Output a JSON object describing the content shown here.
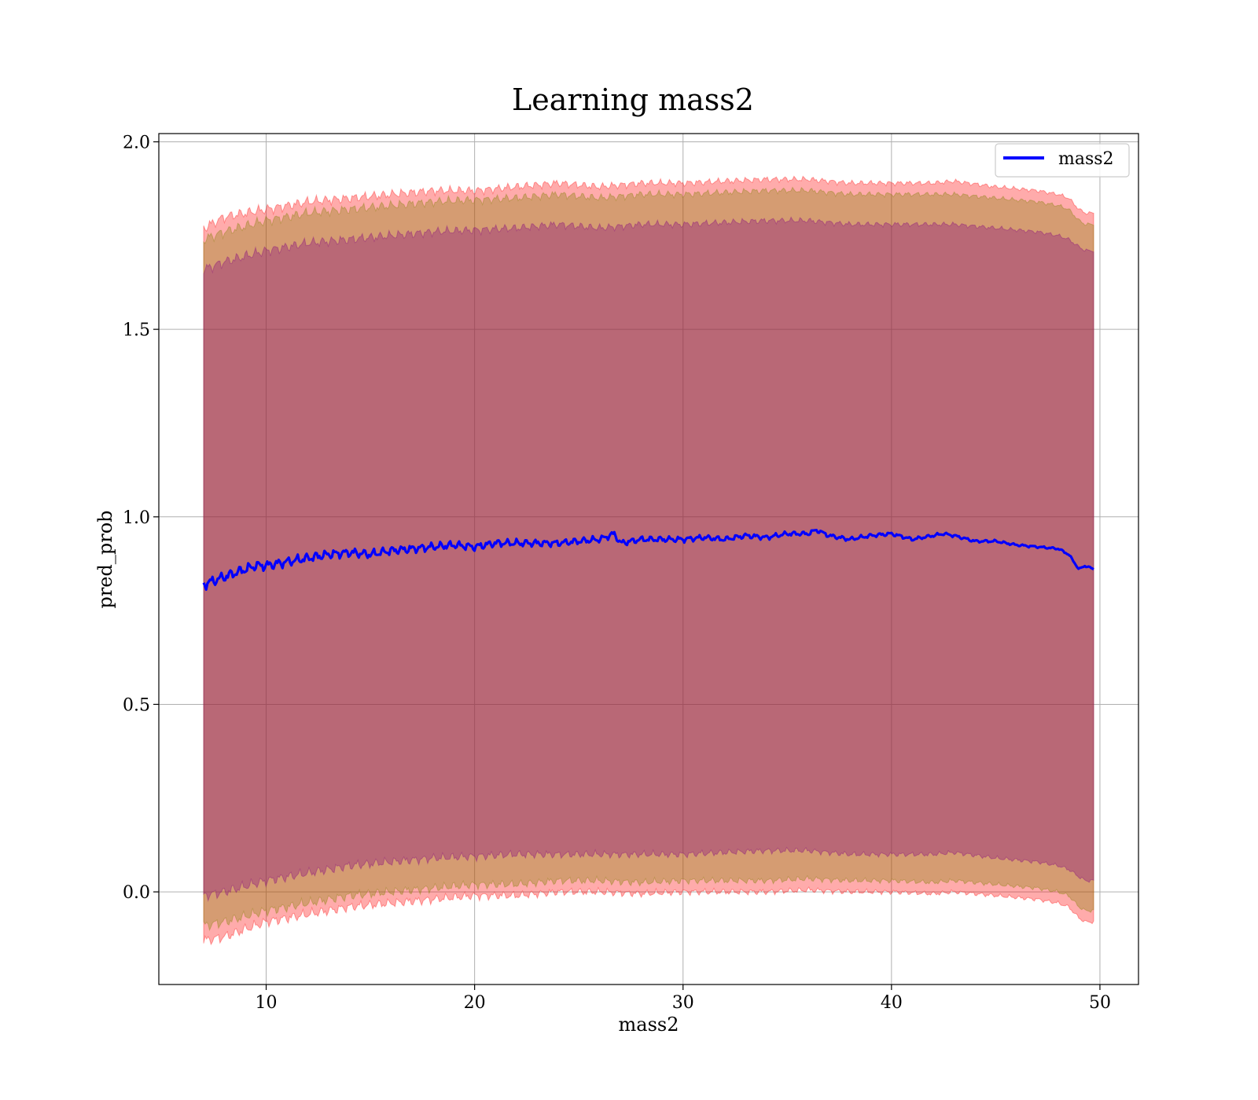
{
  "chart_data": {
    "type": "line",
    "title": "Learning mass2",
    "xlabel": "mass2",
    "ylabel": "pred_prob",
    "xlim": [
      4.85,
      51.85
    ],
    "ylim": [
      -0.247,
      2.022
    ],
    "xticks": [
      10,
      20,
      30,
      40,
      50
    ],
    "xtick_labels": [
      "10",
      "20",
      "30",
      "40",
      "50"
    ],
    "yticks": [
      0.0,
      0.5,
      1.0,
      1.5,
      2.0
    ],
    "ytick_labels": [
      "0.0",
      "0.5",
      "1.0",
      "1.5",
      "2.0"
    ],
    "grid": true,
    "legend": {
      "entries": [
        "mass2"
      ],
      "position": "top-right"
    },
    "colors": {
      "line": "#0000ff",
      "band_outer": "#ff0000",
      "band_middle": "#808000",
      "band_inner": "#800080"
    },
    "series": [
      {
        "name": "mass2",
        "x": [
          7.0,
          7.5,
          8.0,
          8.5,
          9.0,
          9.5,
          10.0,
          11.0,
          12.0,
          13.0,
          14.0,
          15.0,
          16.0,
          17.0,
          18.0,
          19.0,
          20.0,
          21.0,
          22.0,
          23.0,
          24.0,
          25.0,
          26.0,
          26.7,
          27.0,
          28.0,
          29.0,
          30.0,
          31.0,
          32.0,
          33.0,
          34.0,
          35.0,
          36.0,
          36.4,
          37.0,
          38.0,
          39.0,
          40.0,
          41.0,
          42.0,
          42.5,
          43.0,
          44.0,
          45.0,
          46.0,
          47.0,
          48.0,
          48.5,
          49.0,
          49.3,
          49.7
        ],
        "y": [
          0.82,
          0.83,
          0.84,
          0.85,
          0.86,
          0.87,
          0.87,
          0.88,
          0.89,
          0.9,
          0.905,
          0.9,
          0.91,
          0.915,
          0.92,
          0.925,
          0.92,
          0.93,
          0.93,
          0.93,
          0.93,
          0.935,
          0.94,
          0.955,
          0.93,
          0.94,
          0.94,
          0.94,
          0.945,
          0.94,
          0.95,
          0.945,
          0.955,
          0.955,
          0.965,
          0.95,
          0.94,
          0.95,
          0.955,
          0.94,
          0.95,
          0.955,
          0.95,
          0.935,
          0.935,
          0.925,
          0.92,
          0.915,
          0.9,
          0.86,
          0.87,
          0.86
        ]
      }
    ],
    "bands": [
      {
        "color": "red",
        "opacity": 0.33,
        "x": [
          7.0,
          8.0,
          10.0,
          12.0,
          14.0,
          16.0,
          18.0,
          20.0,
          22.0,
          24.0,
          26.0,
          28.0,
          30.0,
          32.0,
          34.0,
          36.0,
          38.0,
          40.0,
          42.0,
          43.0,
          45.0,
          47.0,
          48.0,
          48.5,
          49.0,
          49.3,
          49.7
        ],
        "upper": [
          1.77,
          1.8,
          1.82,
          1.84,
          1.85,
          1.86,
          1.87,
          1.87,
          1.88,
          1.89,
          1.88,
          1.89,
          1.89,
          1.895,
          1.9,
          1.9,
          1.89,
          1.89,
          1.89,
          1.895,
          1.88,
          1.87,
          1.86,
          1.85,
          1.82,
          1.81,
          1.81
        ],
        "lower": [
          -0.13,
          -0.12,
          -0.08,
          -0.06,
          -0.04,
          -0.03,
          -0.02,
          -0.01,
          -0.01,
          0.0,
          0.0,
          -0.005,
          0.0,
          0.0,
          0.0,
          0.005,
          0.0,
          0.0,
          -0.005,
          0.0,
          -0.01,
          -0.02,
          -0.03,
          -0.04,
          -0.07,
          -0.08,
          -0.08
        ]
      },
      {
        "color": "olive",
        "opacity": 0.33,
        "x": [
          7.0,
          8.0,
          10.0,
          12.0,
          14.0,
          16.0,
          18.0,
          20.0,
          22.0,
          24.0,
          26.0,
          28.0,
          30.0,
          32.0,
          34.0,
          36.0,
          38.0,
          40.0,
          42.0,
          43.0,
          45.0,
          47.0,
          48.0,
          48.5,
          49.0,
          49.3,
          49.7
        ],
        "upper": [
          1.74,
          1.76,
          1.79,
          1.81,
          1.82,
          1.83,
          1.84,
          1.845,
          1.85,
          1.86,
          1.85,
          1.86,
          1.86,
          1.865,
          1.87,
          1.87,
          1.86,
          1.86,
          1.86,
          1.86,
          1.85,
          1.84,
          1.83,
          1.82,
          1.79,
          1.78,
          1.78
        ],
        "lower": [
          -0.09,
          -0.08,
          -0.05,
          -0.03,
          -0.01,
          0.0,
          0.01,
          0.02,
          0.02,
          0.03,
          0.03,
          0.025,
          0.03,
          0.03,
          0.03,
          0.035,
          0.03,
          0.03,
          0.025,
          0.03,
          0.02,
          0.01,
          0.0,
          -0.01,
          -0.04,
          -0.05,
          -0.05
        ]
      },
      {
        "color": "purple",
        "opacity": 0.33,
        "x": [
          7.0,
          8.0,
          10.0,
          12.0,
          14.0,
          16.0,
          18.0,
          20.0,
          22.0,
          24.0,
          26.0,
          28.0,
          30.0,
          32.0,
          34.0,
          36.0,
          38.0,
          40.0,
          42.0,
          43.0,
          45.0,
          47.0,
          48.0,
          48.5,
          49.0,
          49.3,
          49.7
        ],
        "upper": [
          1.66,
          1.68,
          1.71,
          1.73,
          1.74,
          1.75,
          1.76,
          1.765,
          1.77,
          1.78,
          1.77,
          1.78,
          1.78,
          1.785,
          1.79,
          1.79,
          1.78,
          1.78,
          1.78,
          1.78,
          1.77,
          1.76,
          1.75,
          1.74,
          1.72,
          1.71,
          1.71
        ],
        "lower": [
          -0.01,
          0.0,
          0.03,
          0.05,
          0.07,
          0.08,
          0.09,
          0.095,
          0.1,
          0.1,
          0.1,
          0.1,
          0.1,
          0.105,
          0.11,
          0.11,
          0.1,
          0.1,
          0.1,
          0.105,
          0.09,
          0.08,
          0.07,
          0.06,
          0.04,
          0.03,
          0.03
        ]
      }
    ]
  }
}
